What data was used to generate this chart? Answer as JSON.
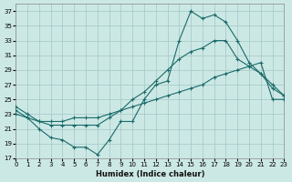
{
  "xlabel": "Humidex (Indice chaleur)",
  "bg_color": "#cce8e5",
  "grid_color": "#a8ccca",
  "line_color": "#1a6b68",
  "xlim": [
    0,
    23
  ],
  "ylim": [
    17,
    38
  ],
  "yticks": [
    17,
    19,
    21,
    23,
    25,
    27,
    29,
    31,
    33,
    35,
    37
  ],
  "xticks": [
    0,
    1,
    2,
    3,
    4,
    5,
    6,
    7,
    8,
    9,
    10,
    11,
    12,
    13,
    14,
    15,
    16,
    17,
    18,
    19,
    20,
    21,
    22,
    23
  ],
  "line1_x": [
    0,
    1,
    2,
    3,
    4,
    5,
    6,
    7,
    8,
    9,
    10,
    11,
    12,
    13,
    14,
    15,
    16,
    17,
    18,
    19,
    20,
    21,
    22,
    23
  ],
  "line1_y": [
    23.5,
    22.5,
    21.0,
    19.8,
    19.5,
    18.5,
    18.5,
    17.5,
    19.5,
    22.0,
    22.0,
    25.0,
    27.0,
    27.5,
    33.0,
    37.0,
    36.0,
    36.5,
    35.5,
    33.0,
    30.0,
    28.5,
    26.5,
    25.5
  ],
  "line2_x": [
    0,
    1,
    2,
    3,
    4,
    5,
    6,
    7,
    8,
    9,
    10,
    11,
    12,
    13,
    14,
    15,
    16,
    17,
    18,
    19,
    20,
    21,
    22,
    23
  ],
  "line2_y": [
    24.0,
    23.0,
    22.0,
    21.5,
    21.5,
    21.5,
    21.5,
    21.5,
    22.5,
    23.5,
    25.0,
    26.0,
    27.5,
    29.0,
    30.5,
    31.5,
    32.0,
    33.0,
    33.0,
    30.5,
    29.5,
    28.5,
    27.0,
    25.5
  ],
  "line3_x": [
    0,
    1,
    2,
    3,
    4,
    5,
    6,
    7,
    8,
    9,
    10,
    11,
    12,
    13,
    14,
    15,
    16,
    17,
    18,
    19,
    20,
    21,
    22,
    23
  ],
  "line3_y": [
    23.0,
    22.5,
    22.0,
    22.0,
    22.0,
    22.5,
    22.5,
    22.5,
    23.0,
    23.5,
    24.0,
    24.5,
    25.0,
    25.5,
    26.0,
    26.5,
    27.0,
    28.0,
    28.5,
    29.0,
    29.5,
    30.0,
    25.0,
    25.0
  ]
}
